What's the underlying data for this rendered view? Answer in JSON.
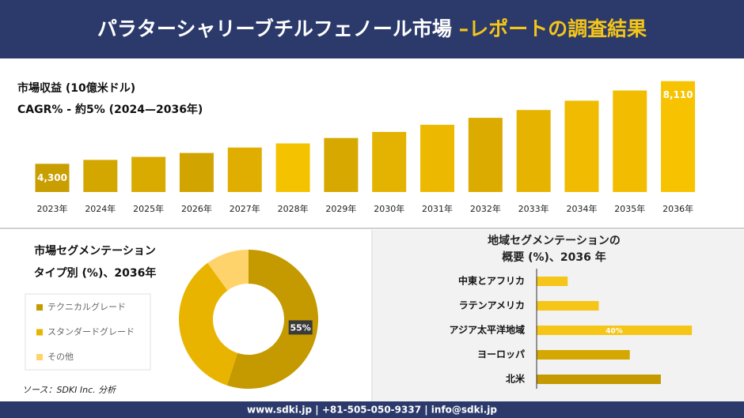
{
  "header": {
    "title": "パラターシャリーブチルフェノール市場 ",
    "title_highlight": "–レポートの調査結果"
  },
  "chart_data": [
    {
      "type": "bar",
      "title": "市場収益 (10億米ドル)",
      "subtitle": "CAGR% - 約5% (2024—2036年)",
      "categories": [
        "2023年",
        "2024年",
        "2025年",
        "2026年",
        "2027年",
        "2028年",
        "2029年",
        "2030年",
        "2031年",
        "2032年",
        "2033年",
        "2034年",
        "2035年",
        "2036年"
      ],
      "values": [
        4300,
        4480,
        4620,
        4800,
        5050,
        5240,
        5490,
        5770,
        6100,
        6420,
        6780,
        7210,
        7680,
        8110
      ],
      "value_labels": [
        "4,300",
        null,
        null,
        null,
        null,
        null,
        null,
        null,
        null,
        null,
        null,
        null,
        null,
        "8,110"
      ],
      "colors": [
        "#c99e00",
        "#d4a600",
        "#d9aa00",
        "#d2a400",
        "#e0ae00",
        "#f5c200",
        "#d6a800",
        "#e4b200",
        "#edb900",
        "#dcab00",
        "#e6b400",
        "#f0bb00",
        "#f2bd00",
        "#f7c300"
      ],
      "ylim": [
        3000,
        8500
      ]
    },
    {
      "type": "donut",
      "title": "市場セグメンテーション",
      "subtitle": "タイプ別 (%)、2036年",
      "categories": [
        "テクニカルグレード",
        "スタンダードグレード",
        "その他"
      ],
      "values": [
        55,
        35,
        10
      ],
      "value_labels": [
        "55%",
        null,
        null
      ],
      "colors": [
        "#c49a00",
        "#e8b400",
        "#ffd36b"
      ],
      "legend": "left"
    },
    {
      "type": "hbar",
      "title": "地域セグメンテーションの",
      "subtitle": "概要 (%)、2036 年",
      "categories": [
        "中東とアフリカ",
        "ラテンアメリカ",
        "アジア太平洋地域",
        "ヨーロッパ",
        "北米"
      ],
      "values": [
        8,
        16,
        40,
        24,
        32
      ],
      "value_labels": [
        null,
        null,
        "40%",
        null,
        null
      ],
      "colors": [
        "#f5c518",
        "#f5c518",
        "#f5c518",
        "#d4a800",
        "#c49a00"
      ],
      "xlim": [
        0,
        52
      ]
    }
  ],
  "source": "ソース：SDKI Inc. 分析",
  "footer": "www.sdki.jp | +81-505-050-9337 | info@sdki.jp"
}
